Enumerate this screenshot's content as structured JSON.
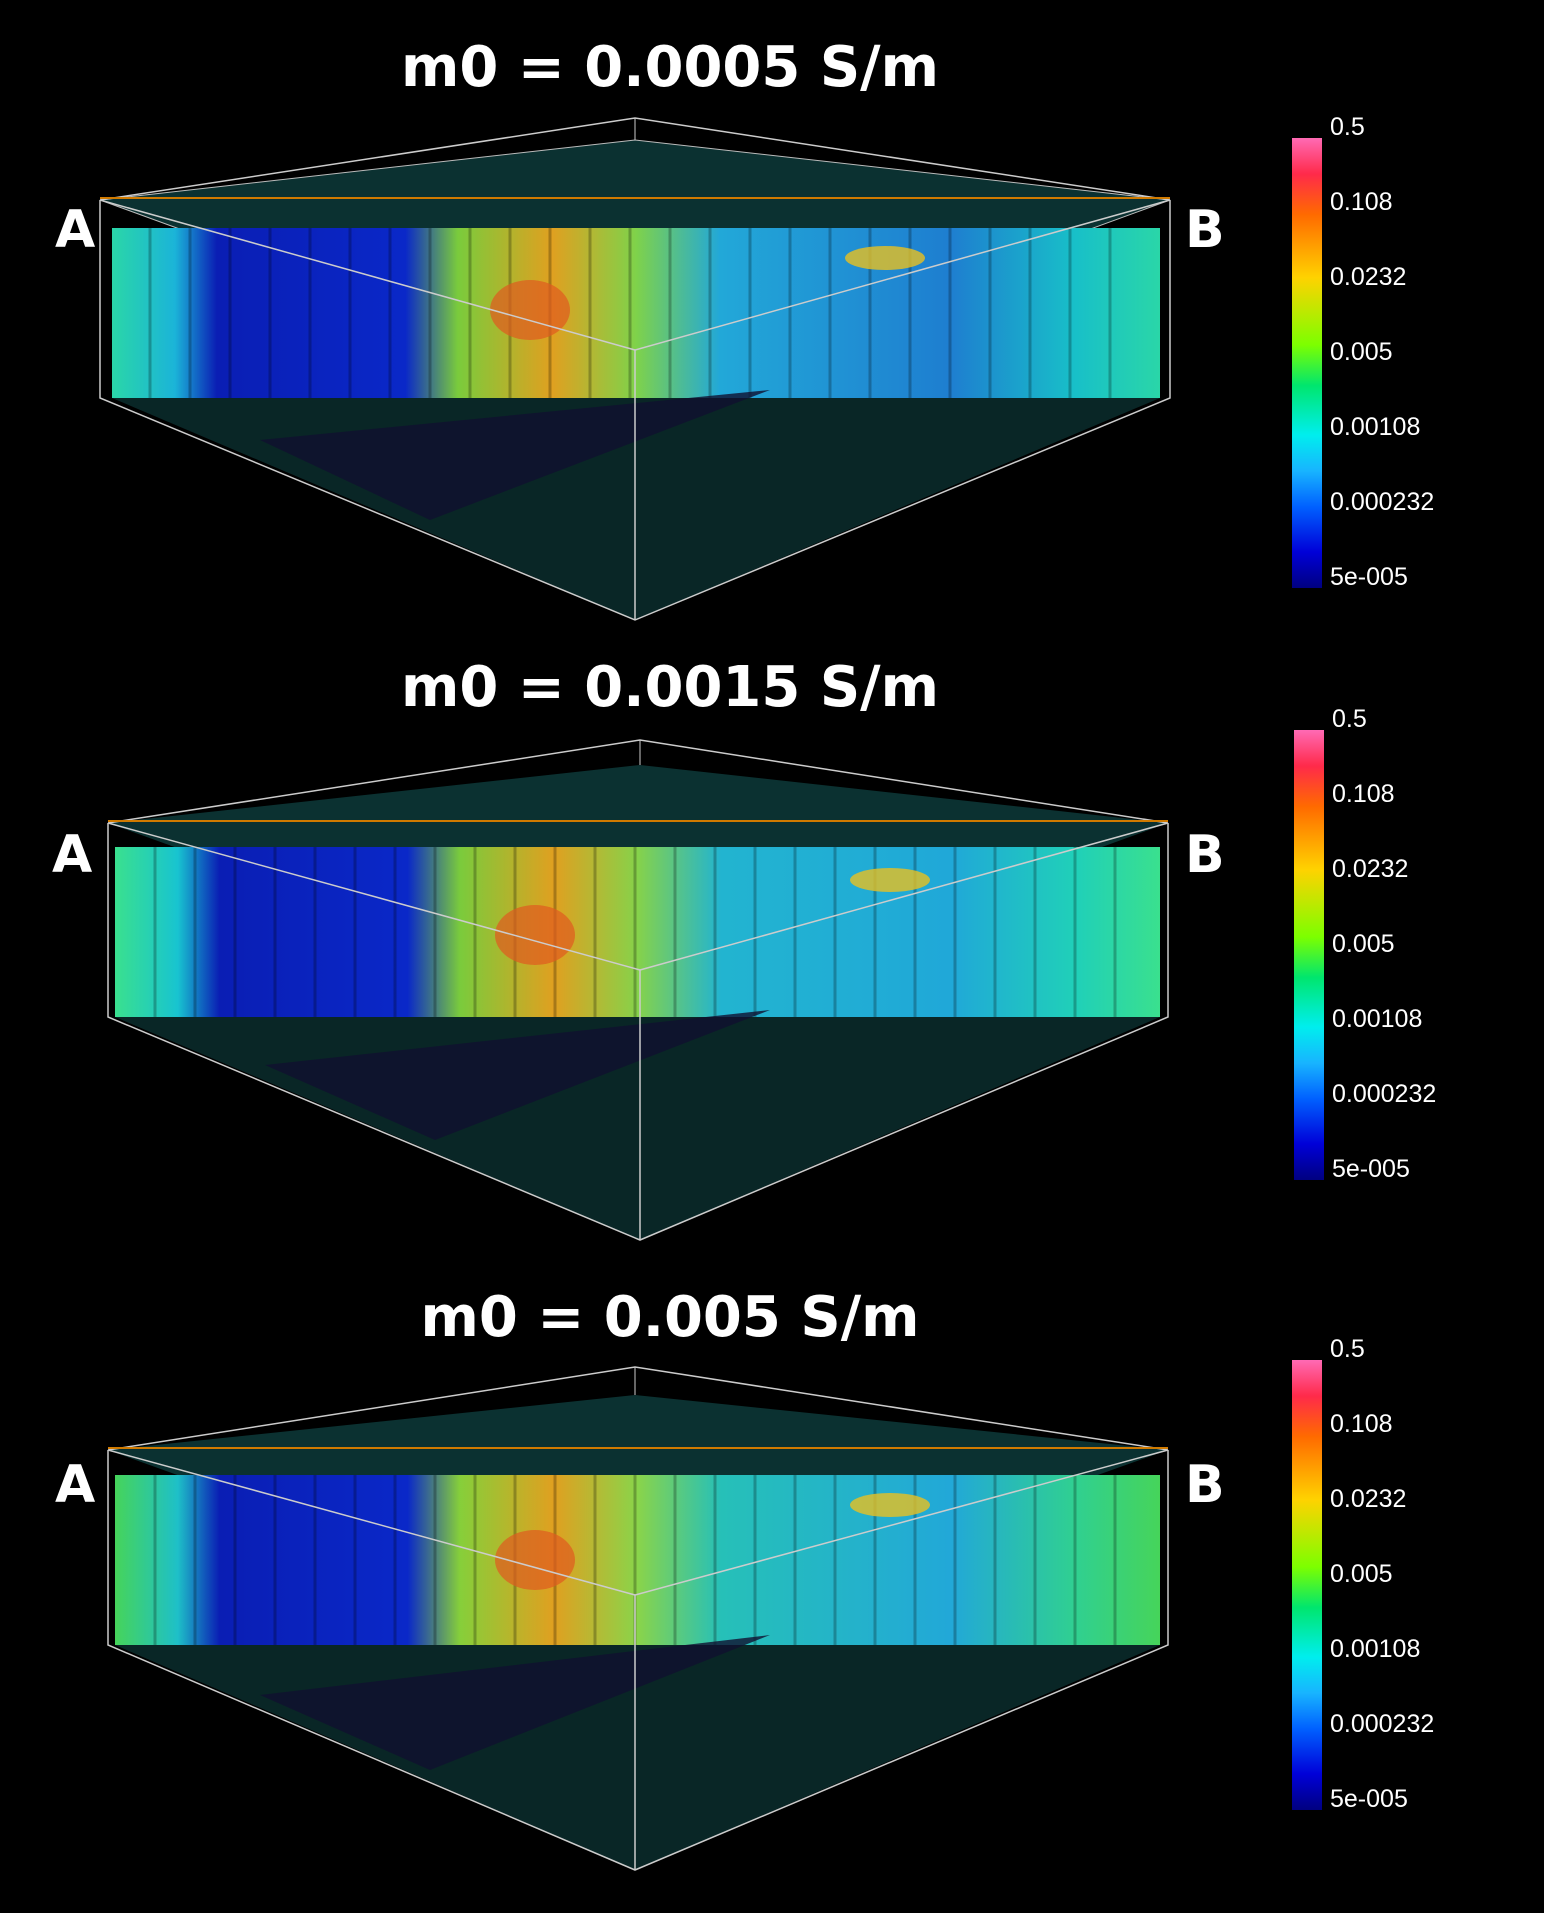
{
  "panels": [
    {
      "title": "m0 = 0.0005 S/m",
      "label_left": "A",
      "label_right": "B"
    },
    {
      "title": "m0 = 0.0015 S/m",
      "label_left": "A",
      "label_right": "B"
    },
    {
      "title": "m0 = 0.005 S/m",
      "label_left": "A",
      "label_right": "B"
    }
  ],
  "colorbar": {
    "ticks": [
      "0.5",
      "0.108",
      "0.0232",
      "0.005",
      "0.00108",
      "0.000232",
      "5e-005"
    ]
  }
}
